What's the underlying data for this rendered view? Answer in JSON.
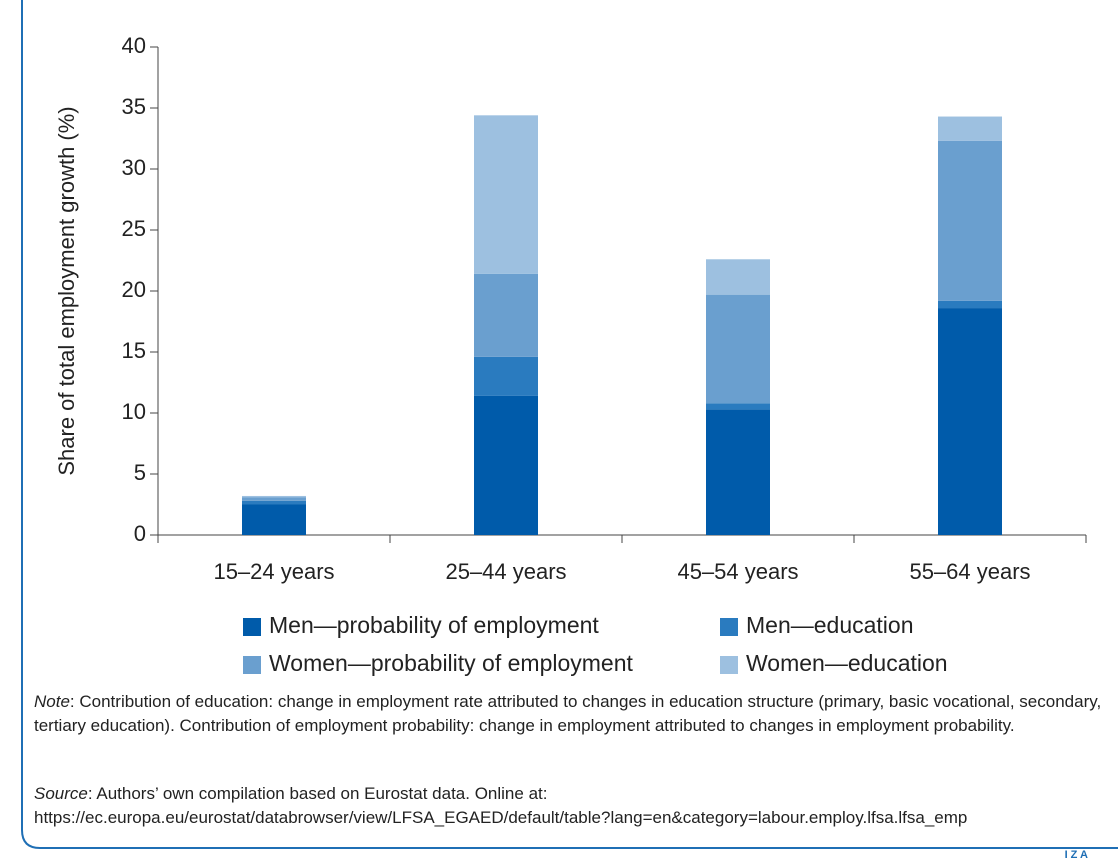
{
  "chart_data": {
    "type": "stacked-bar",
    "ylabel": "Share of total employment growth (%)",
    "categories": [
      "15–24 years",
      "25–44 years",
      "45–54 years",
      "55–64 years"
    ],
    "series": [
      {
        "name": "Men—probability of employment",
        "color": "#005baa",
        "values": [
          2.5,
          11.4,
          10.3,
          18.6
        ]
      },
      {
        "name": "Men—education",
        "color": "#2a7bbf",
        "values": [
          0.3,
          3.2,
          0.5,
          0.6
        ]
      },
      {
        "name": "Women—probability of employment",
        "color": "#6a9fcf",
        "values": [
          0.3,
          6.8,
          8.9,
          13.1
        ]
      },
      {
        "name": "Women—education",
        "color": "#9dc0e0",
        "values": [
          0.1,
          13.0,
          2.9,
          2.0
        ]
      }
    ],
    "ylim": [
      0,
      40
    ],
    "yticks": [
      0,
      5,
      10,
      15,
      20,
      25,
      30,
      35,
      40
    ],
    "grid": false
  },
  "note": {
    "label": "Note",
    "text": ": Contribution of education: change in employment rate attributed to changes in education structure (primary, basic vocational, secondary, tertiary education). Contribution of employment probability: change in employment attributed to changes in employment probability."
  },
  "source": {
    "label": "Source",
    "text": ": Authors’ own compilation based on Eurostat data. Online at: https://ec.europa.eu/eurostat/databrowser/view/LFSA_EGAED/default/table?lang=en&category=labour.employ.lfsa.lfsa_emp"
  },
  "logo": "I Z A"
}
